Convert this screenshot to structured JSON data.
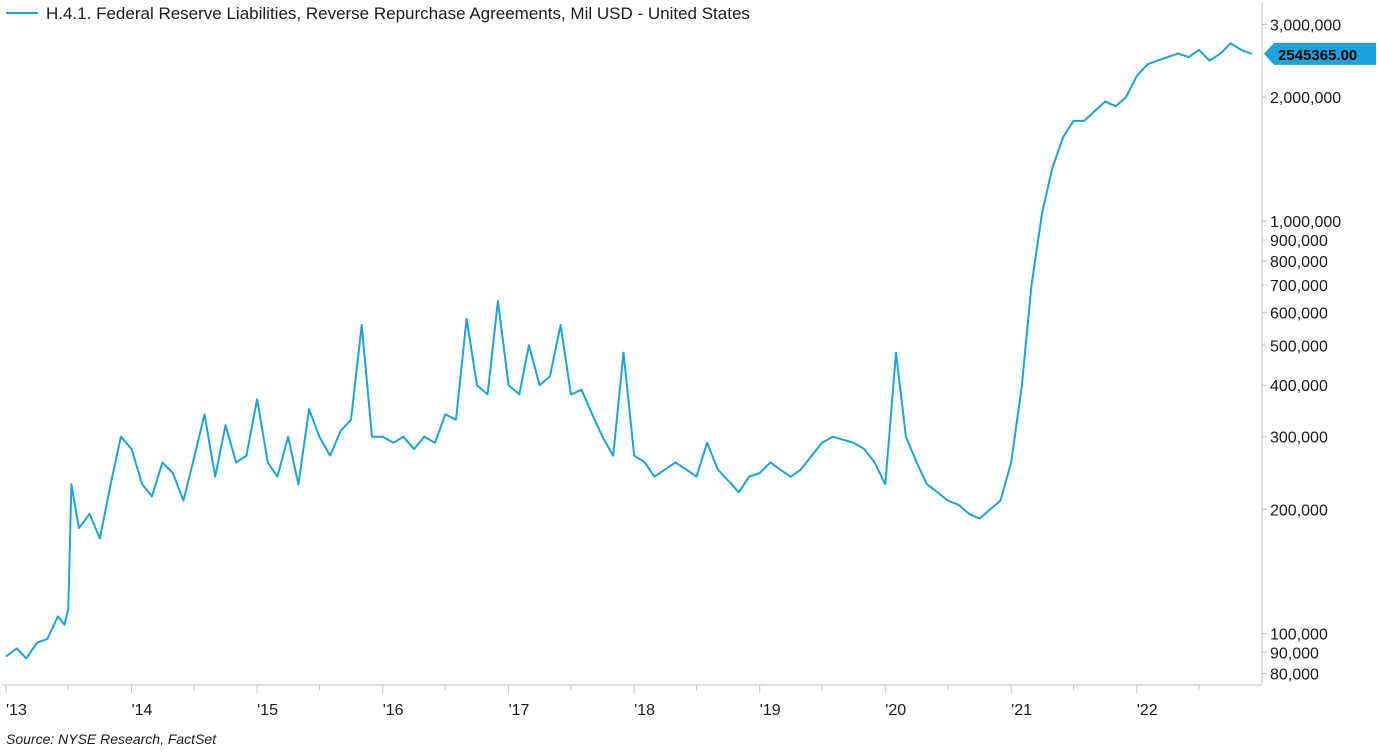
{
  "chart_data": {
    "type": "line",
    "legend": "H.4.1. Federal Reserve Liabilities, Reverse Repurchase Agreements, Mil USD - United States",
    "legend_position": "top-left",
    "y_scale": "log",
    "ylim": [
      75000,
      3400000
    ],
    "xlim": [
      "2013-01-01",
      "2022-12-31"
    ],
    "y_ticks": [
      {
        "value": 3000000,
        "label": "3,000,000"
      },
      {
        "value": 2000000,
        "label": "2,000,000"
      },
      {
        "value": 1000000,
        "label": "1,000,000"
      },
      {
        "value": 900000,
        "label": "900,000"
      },
      {
        "value": 800000,
        "label": "800,000"
      },
      {
        "value": 700000,
        "label": "700,000"
      },
      {
        "value": 600000,
        "label": "600,000"
      },
      {
        "value": 500000,
        "label": "500,000"
      },
      {
        "value": 400000,
        "label": "400,000"
      },
      {
        "value": 300000,
        "label": "300,000"
      },
      {
        "value": 200000,
        "label": "200,000"
      },
      {
        "value": 100000,
        "label": "100,000"
      },
      {
        "value": 90000,
        "label": "90,000"
      },
      {
        "value": 80000,
        "label": "80,000"
      }
    ],
    "x_ticks": [
      {
        "value": "2013-01-01",
        "label": "'13"
      },
      {
        "value": "2014-01-01",
        "label": "'14"
      },
      {
        "value": "2015-01-01",
        "label": "'15"
      },
      {
        "value": "2016-01-01",
        "label": "'16"
      },
      {
        "value": "2017-01-01",
        "label": "'17"
      },
      {
        "value": "2018-01-01",
        "label": "'18"
      },
      {
        "value": "2019-01-01",
        "label": "'19"
      },
      {
        "value": "2020-01-01",
        "label": "'20"
      },
      {
        "value": "2021-01-01",
        "label": "'21"
      },
      {
        "value": "2022-01-01",
        "label": "'22"
      }
    ],
    "minor_x_ticks": [
      "2013-07-01",
      "2014-07-01",
      "2015-07-01",
      "2016-07-01",
      "2017-07-01",
      "2018-07-01",
      "2019-07-01",
      "2020-07-01",
      "2021-07-01",
      "2022-07-01"
    ],
    "last_value_label": "2545365.00",
    "colors": {
      "line": "#1ba3dc",
      "last_value_bg": "#1ba3dc",
      "axis": "#bfbfbf"
    },
    "series": [
      {
        "x": [
          "2013-01-01",
          "2013-02-01",
          "2013-03-01",
          "2013-04-01",
          "2013-05-01",
          "2013-06-01",
          "2013-06-20",
          "2013-07-01",
          "2013-07-10",
          "2013-08-01",
          "2013-09-01",
          "2013-10-01",
          "2013-11-01",
          "2013-12-01",
          "2014-01-01",
          "2014-02-01",
          "2014-03-01",
          "2014-04-01",
          "2014-05-01",
          "2014-06-01",
          "2014-07-01",
          "2014-08-01",
          "2014-09-01",
          "2014-10-01",
          "2014-11-01",
          "2014-12-01",
          "2015-01-01",
          "2015-02-01",
          "2015-03-01",
          "2015-04-01",
          "2015-05-01",
          "2015-06-01",
          "2015-07-01",
          "2015-08-01",
          "2015-09-01",
          "2015-10-01",
          "2015-11-01",
          "2015-12-01",
          "2016-01-01",
          "2016-02-01",
          "2016-03-01",
          "2016-04-01",
          "2016-05-01",
          "2016-06-01",
          "2016-07-01",
          "2016-08-01",
          "2016-09-01",
          "2016-10-01",
          "2016-11-01",
          "2016-12-01",
          "2017-01-01",
          "2017-02-01",
          "2017-03-01",
          "2017-04-01",
          "2017-05-01",
          "2017-06-01",
          "2017-07-01",
          "2017-08-01",
          "2017-09-01",
          "2017-10-01",
          "2017-11-01",
          "2017-12-01",
          "2018-01-01",
          "2018-02-01",
          "2018-03-01",
          "2018-04-01",
          "2018-05-01",
          "2018-06-01",
          "2018-07-01",
          "2018-08-01",
          "2018-09-01",
          "2018-10-01",
          "2018-11-01",
          "2018-12-01",
          "2019-01-01",
          "2019-02-01",
          "2019-03-01",
          "2019-04-01",
          "2019-05-01",
          "2019-06-01",
          "2019-07-01",
          "2019-08-01",
          "2019-09-01",
          "2019-10-01",
          "2019-11-01",
          "2019-12-01",
          "2020-01-01",
          "2020-02-01",
          "2020-03-01",
          "2020-04-01",
          "2020-05-01",
          "2020-06-01",
          "2020-07-01",
          "2020-08-01",
          "2020-09-01",
          "2020-10-01",
          "2020-11-01",
          "2020-12-01",
          "2021-01-01",
          "2021-02-01",
          "2021-03-01",
          "2021-04-01",
          "2021-05-01",
          "2021-06-01",
          "2021-07-01",
          "2021-08-01",
          "2021-09-01",
          "2021-10-01",
          "2021-11-01",
          "2021-12-01",
          "2022-01-01",
          "2022-02-01",
          "2022-03-01",
          "2022-04-01",
          "2022-05-01",
          "2022-06-01",
          "2022-07-01",
          "2022-08-01",
          "2022-09-01",
          "2022-10-01",
          "2022-11-01",
          "2022-12-01"
        ],
        "y": [
          88000,
          92000,
          87000,
          95000,
          97000,
          110000,
          105000,
          115000,
          230000,
          180000,
          195000,
          170000,
          230000,
          300000,
          280000,
          230000,
          215000,
          260000,
          245000,
          210000,
          265000,
          340000,
          240000,
          320000,
          260000,
          270000,
          370000,
          260000,
          240000,
          300000,
          230000,
          350000,
          300000,
          270000,
          310000,
          330000,
          560000,
          300000,
          300000,
          290000,
          300000,
          280000,
          300000,
          290000,
          340000,
          330000,
          580000,
          400000,
          380000,
          640000,
          400000,
          380000,
          500000,
          400000,
          420000,
          560000,
          380000,
          390000,
          340000,
          300000,
          270000,
          480000,
          270000,
          260000,
          240000,
          250000,
          260000,
          250000,
          240000,
          290000,
          250000,
          235000,
          220000,
          240000,
          245000,
          260000,
          250000,
          240000,
          250000,
          270000,
          290000,
          300000,
          295000,
          290000,
          280000,
          260000,
          230000,
          480000,
          300000,
          260000,
          230000,
          220000,
          210000,
          205000,
          195000,
          190000,
          200000,
          210000,
          260000,
          400000,
          700000,
          1050000,
          1350000,
          1600000,
          1750000,
          1750000,
          1850000,
          1950000,
          1900000,
          2000000,
          2250000,
          2400000,
          2450000,
          2500000,
          2550000,
          2500000,
          2600000,
          2450000,
          2550000,
          2700000,
          2600000,
          2545365
        ]
      }
    ]
  },
  "source": "Source: NYSE Research, FactSet"
}
